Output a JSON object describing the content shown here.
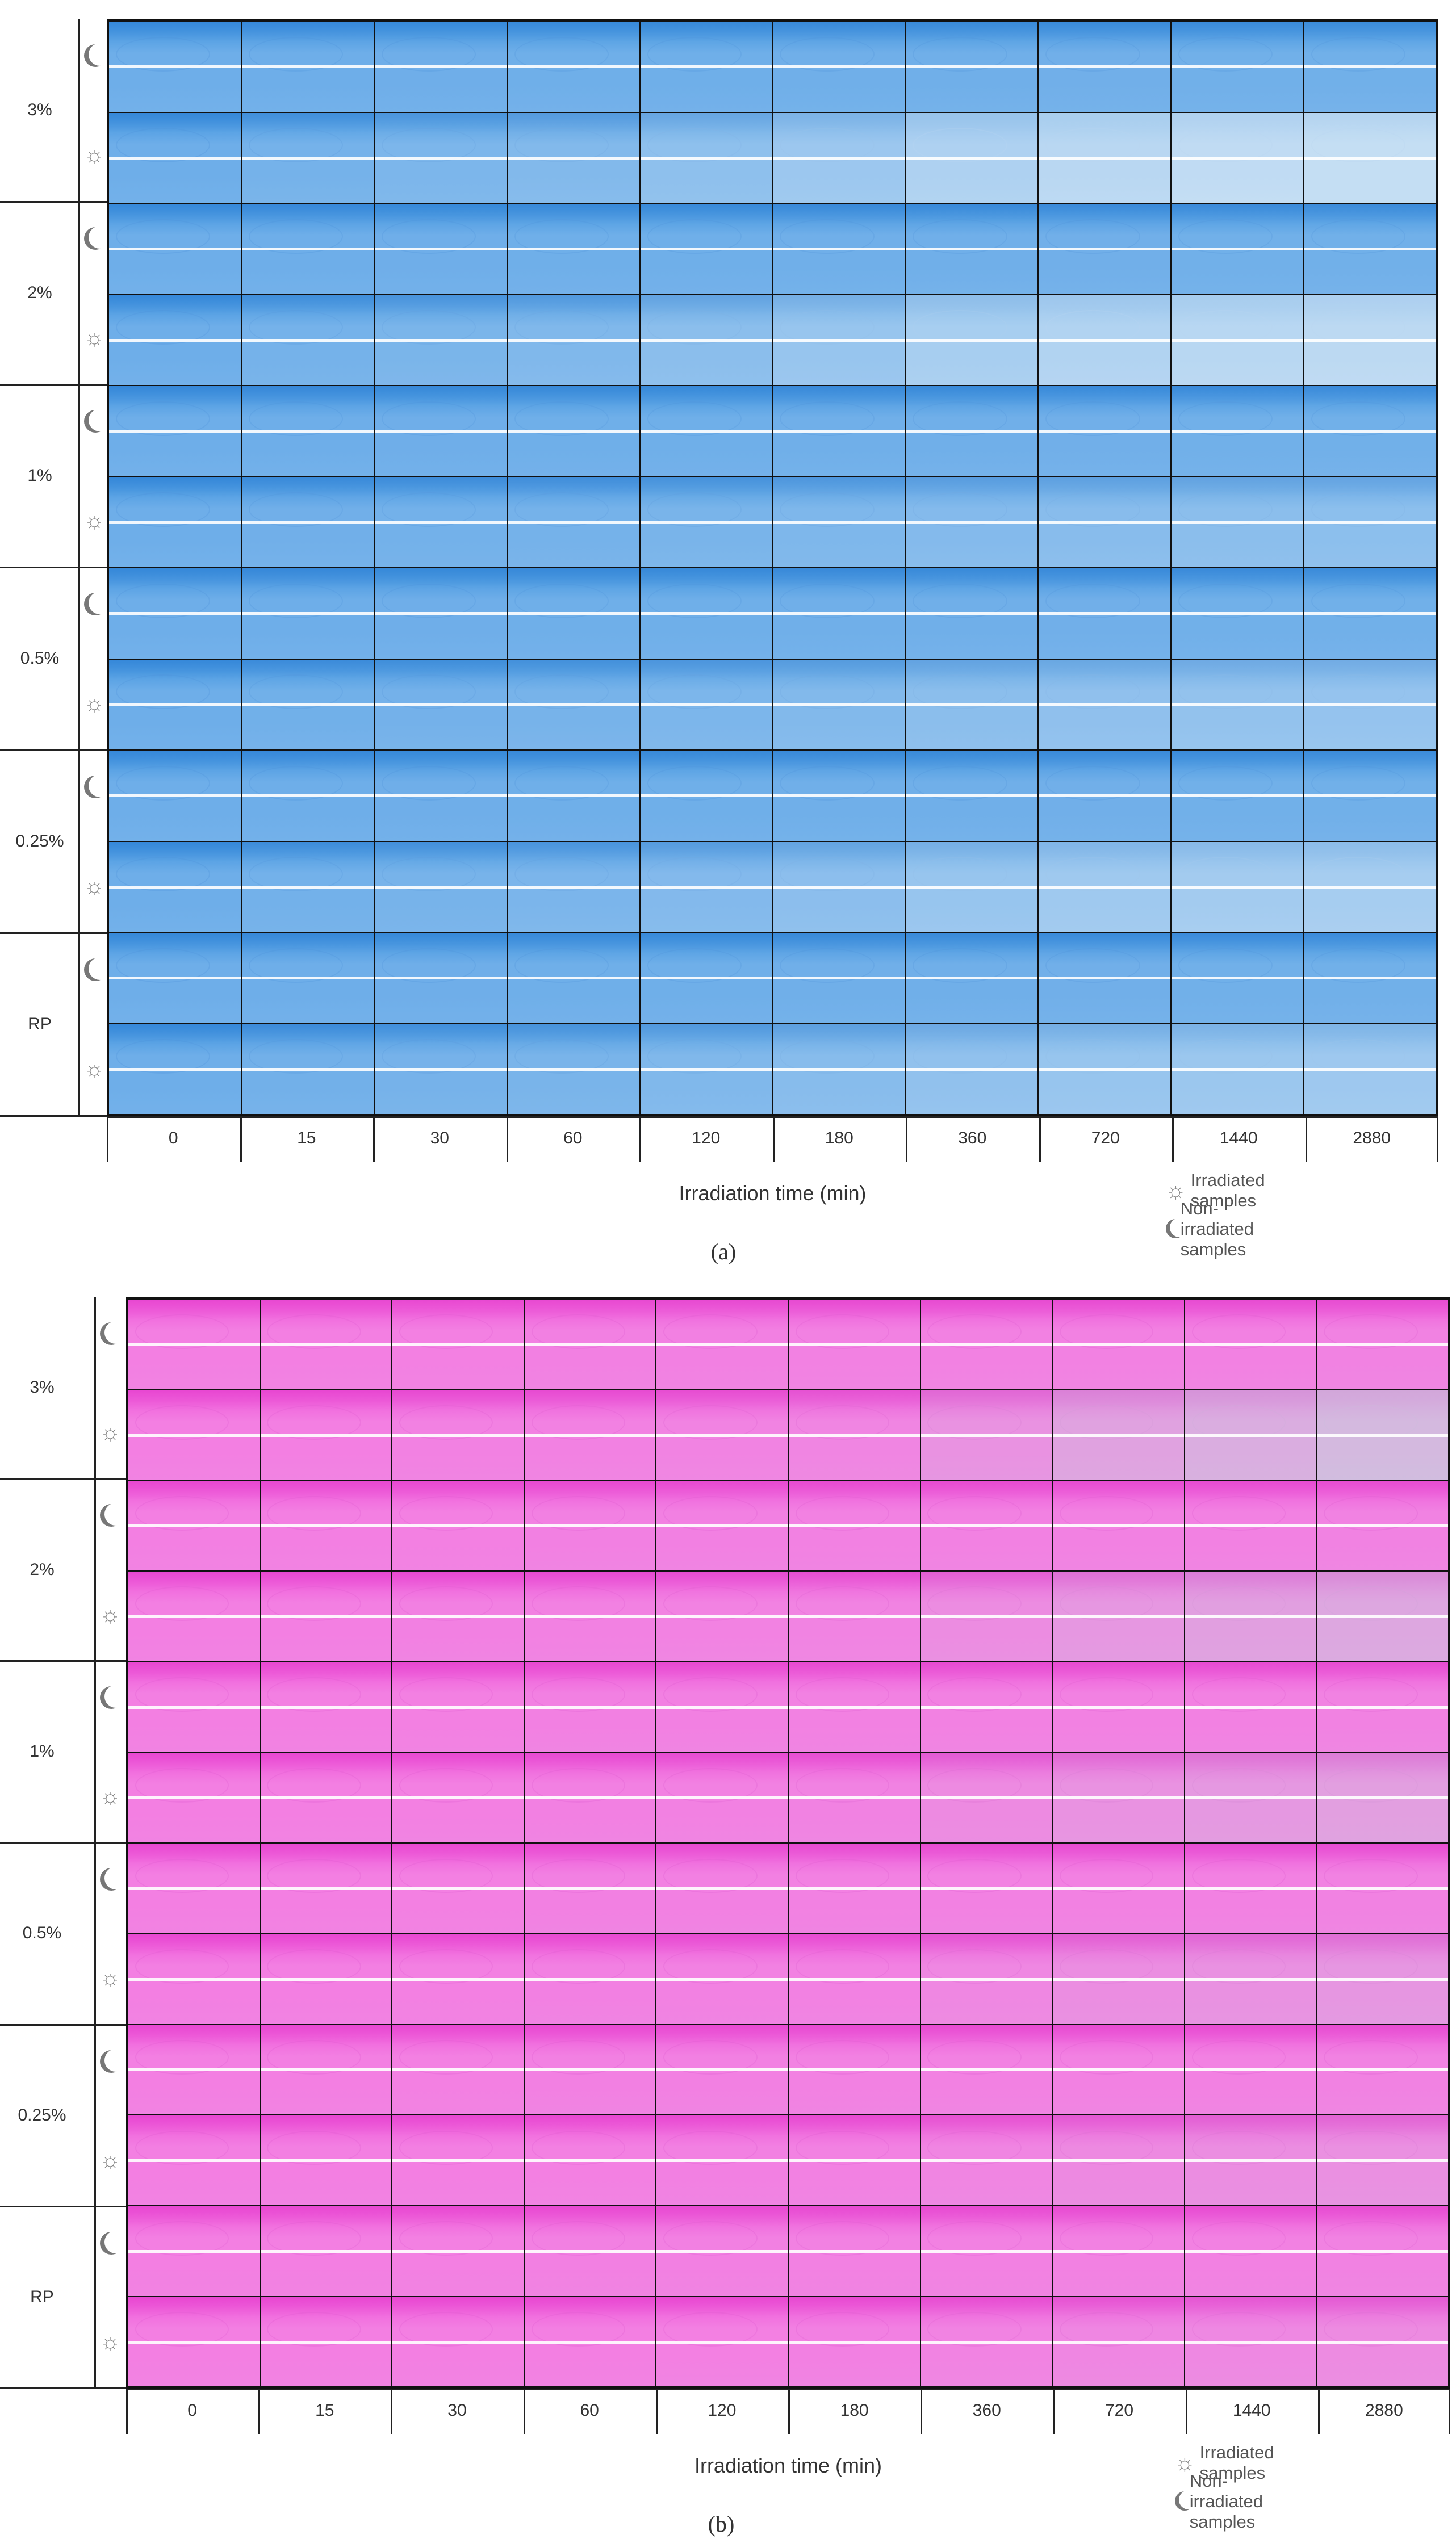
{
  "figure": {
    "concentrations": [
      "3%",
      "2%",
      "1%",
      "0.5%",
      "0.25%",
      "RP"
    ],
    "times": [
      "0",
      "15",
      "30",
      "60",
      "120",
      "180",
      "360",
      "720",
      "1440",
      "2880"
    ],
    "x_axis_label": "Irradiation time (min)",
    "legend": {
      "irradiated": "Irradiated samples",
      "non_irradiated": "Non-irradiated samples"
    },
    "icons": {
      "irradiated": "sun-icon",
      "non_irradiated": "moon-icon"
    }
  },
  "panels": [
    {
      "id": "a",
      "caption_letter": "a",
      "caption_text": "(a)",
      "colors": {
        "dark": "#3d92de",
        "mid": "#6eaee9",
        "light": "#c9e0f4",
        "streak": "#2f7fd4"
      },
      "fade_irradiated_by_time": [
        0.0,
        0.08,
        0.15,
        0.22,
        0.35,
        0.5,
        0.7,
        0.82,
        0.9,
        0.95
      ],
      "fade_by_concentration": [
        1.0,
        0.9,
        0.35,
        0.45,
        0.65,
        0.55
      ]
    },
    {
      "id": "b",
      "caption_letter": "b",
      "caption_text": "(b)",
      "colors": {
        "dark": "#ee55d9",
        "mid": "#f37fe2",
        "light": "#c9ccde",
        "streak": "#e33ccb"
      },
      "fade_irradiated_by_time": [
        0.0,
        0.0,
        0.02,
        0.03,
        0.05,
        0.08,
        0.25,
        0.45,
        0.6,
        0.75
      ],
      "fade_by_concentration": [
        1.0,
        0.7,
        0.55,
        0.4,
        0.3,
        0.2
      ]
    }
  ]
}
